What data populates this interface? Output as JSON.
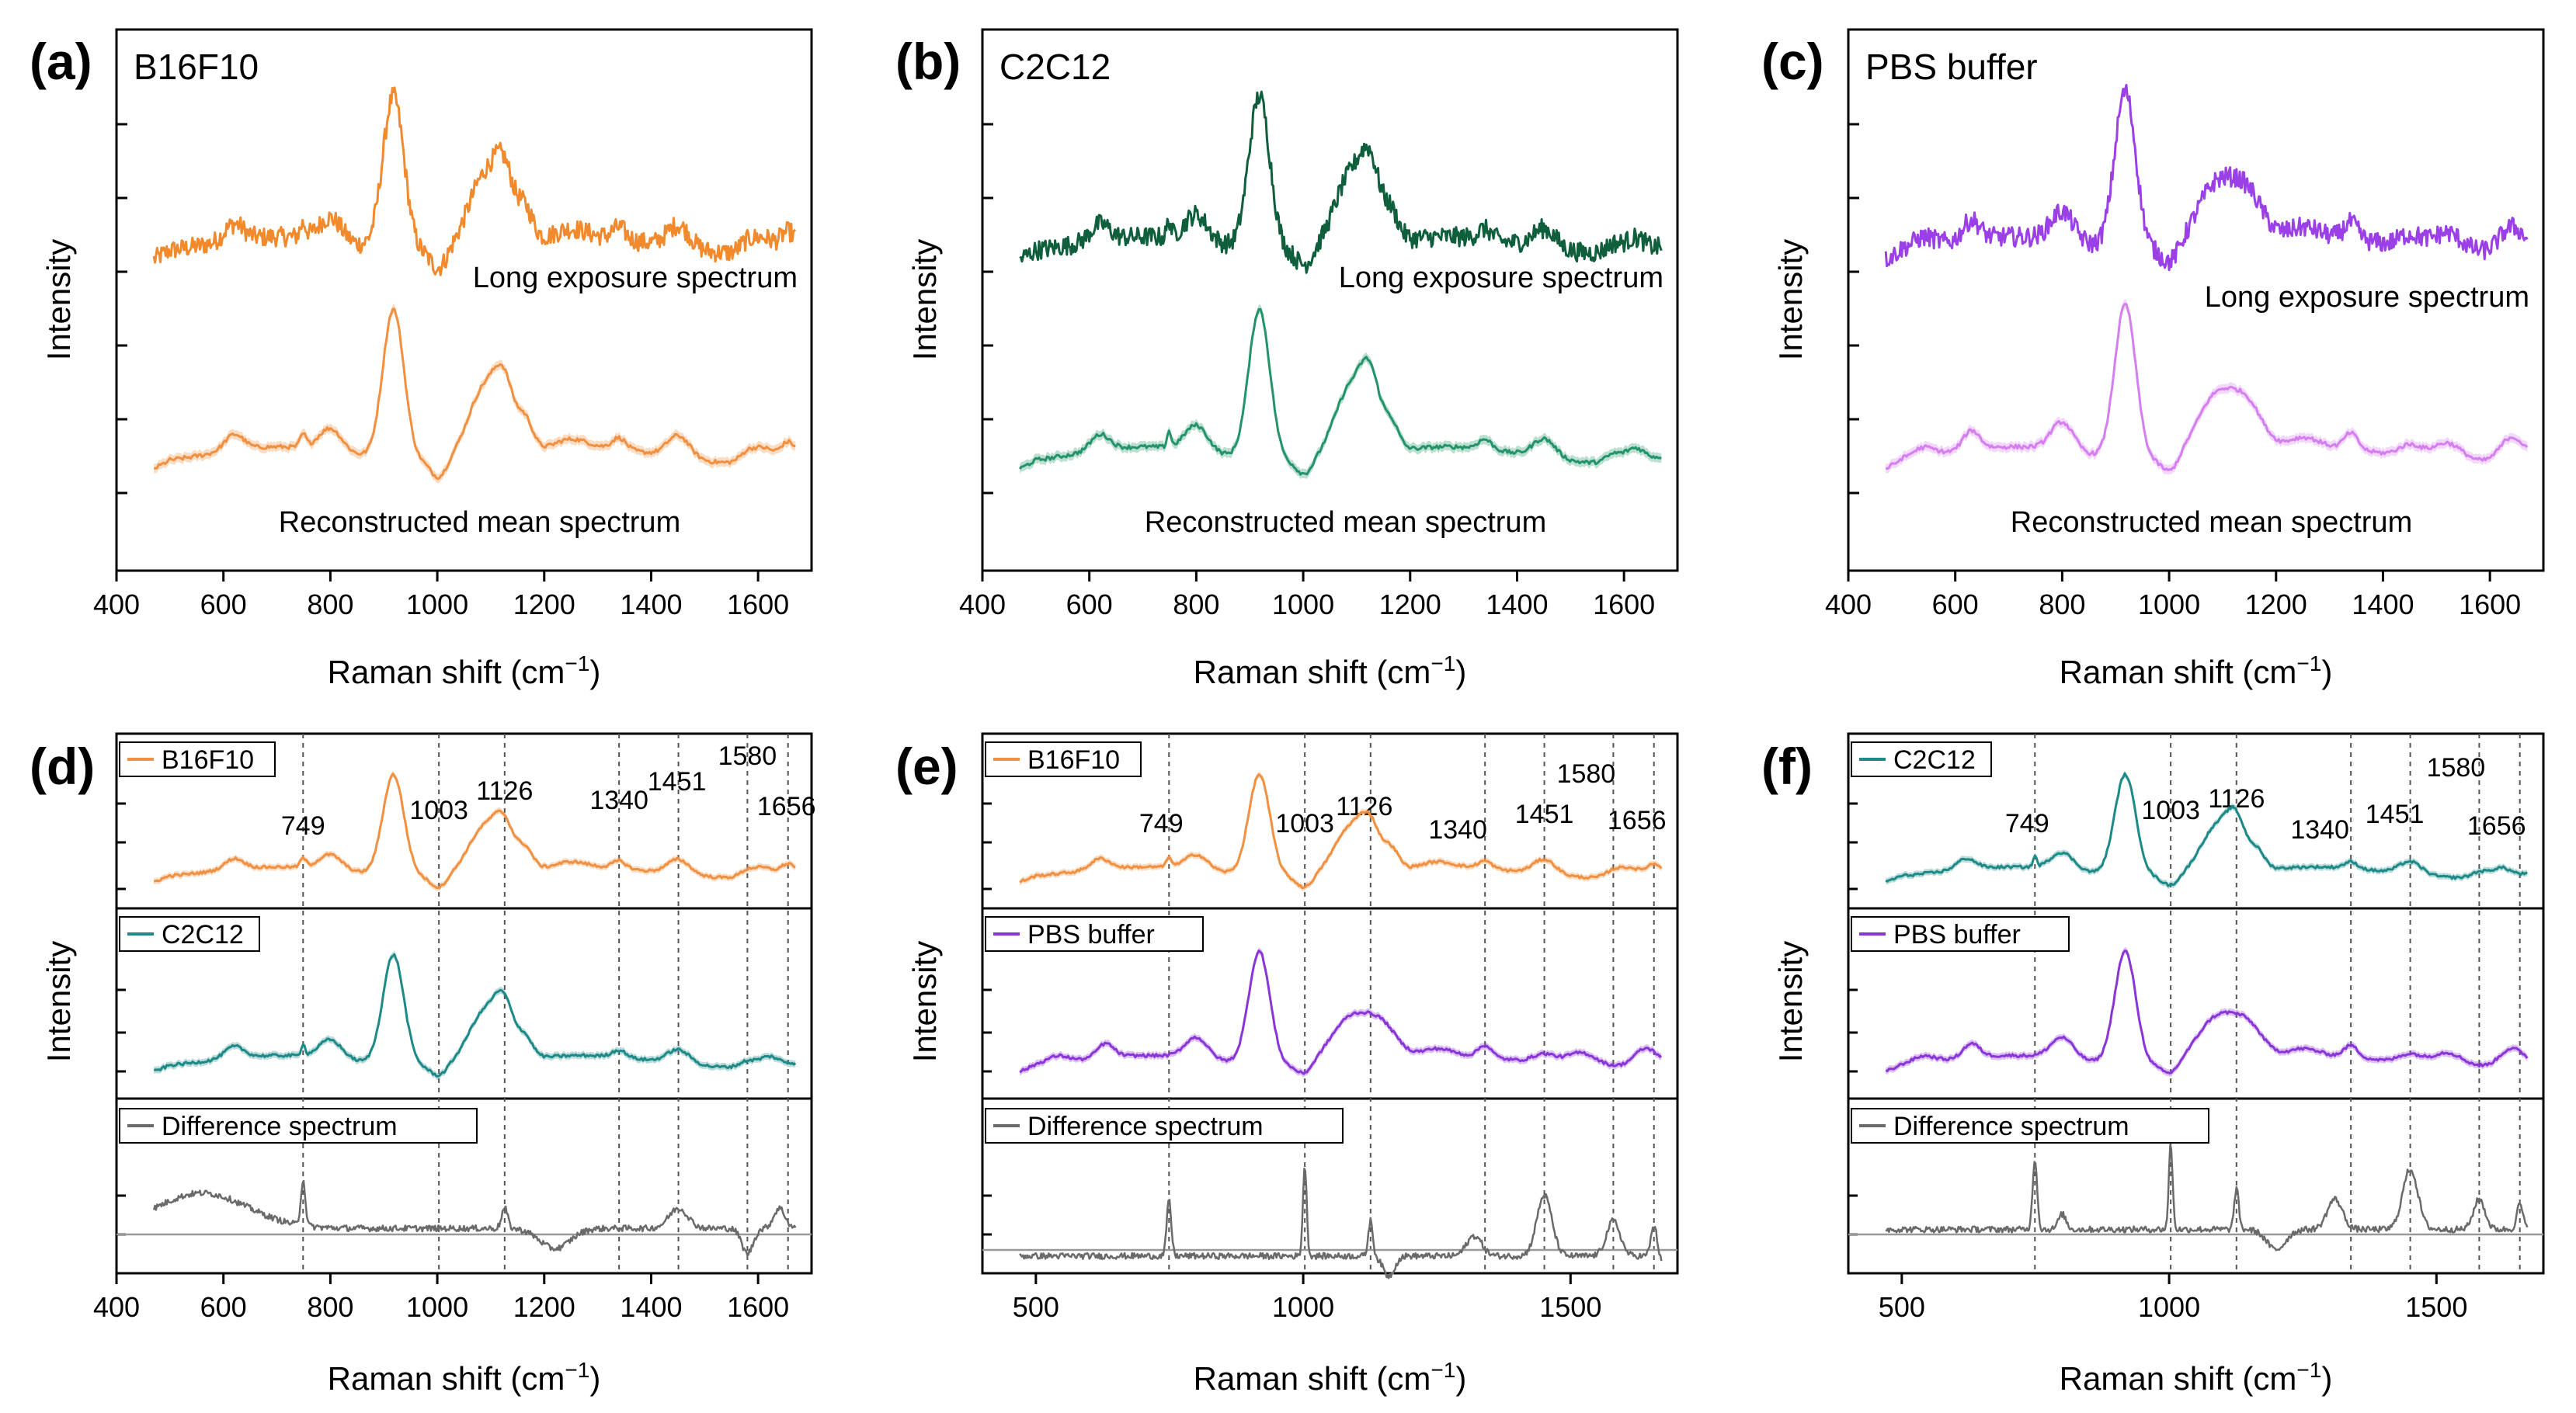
{
  "figure": {
    "xlabel_main": "Raman shift (cm",
    "xlabel_unit_sup": "−1",
    "xlabel_close": ")",
    "ylabel": "Intensity",
    "long_exposure_label": "Long exposure spectrum",
    "reconstructed_label": "Reconstructed mean spectrum",
    "difference_label": "Difference spectrum"
  },
  "colors": {
    "b16_long": "#f08a2c",
    "b16_recon": "#f09040",
    "c2c12_long": "#0f5e3c",
    "c2c12_recon": "#23946a",
    "pbs_long": "#9b3fe6",
    "pbs_recon": "#d47ef0",
    "c2c12_diff_panel": "#1e8a88",
    "pbs_diff_panel": "#8a35d8",
    "difference": "#6a6a6a"
  },
  "chart_data": [
    {
      "type": "line",
      "panel": "(a)",
      "title": "B16F10",
      "xlabel": "Raman shift (cm−1)",
      "ylabel": "Intensity",
      "xlim": [
        400,
        1700
      ],
      "xticks": [
        400,
        600,
        800,
        1000,
        1200,
        1400,
        1600
      ],
      "series": [
        {
          "name": "Long exposure spectrum",
          "peaks": [
            [
              749,
              0.35
            ],
            [
              918,
              1.0
            ],
            [
              1003,
              -0.2
            ],
            [
              1090,
              0.6
            ],
            [
              1126,
              0.5
            ],
            [
              1451,
              0.45
            ],
            [
              1656,
              0.3
            ]
          ]
        },
        {
          "name": "Reconstructed mean spectrum",
          "peaks": [
            [
              620,
              0.15
            ],
            [
              749,
              0.2
            ],
            [
              918,
              1.0
            ],
            [
              1003,
              -0.1
            ],
            [
              1090,
              0.5
            ],
            [
              1126,
              0.4
            ],
            [
              1340,
              0.1
            ],
            [
              1451,
              0.2
            ],
            [
              1580,
              0.1
            ],
            [
              1656,
              0.12
            ]
          ]
        }
      ]
    },
    {
      "type": "line",
      "panel": "(b)",
      "title": "C2C12",
      "xlabel": "Raman shift (cm−1)",
      "ylabel": "Intensity",
      "xlim": [
        400,
        1700
      ],
      "xticks": [
        400,
        600,
        800,
        1000,
        1200,
        1400,
        1600
      ],
      "series": [
        {
          "name": "Long exposure spectrum",
          "peaks": [
            [
              749,
              0.55
            ],
            [
              918,
              1.0
            ],
            [
              1003,
              -0.3
            ],
            [
              1090,
              0.55
            ],
            [
              1126,
              0.4
            ],
            [
              1451,
              0.35
            ]
          ]
        },
        {
          "name": "Reconstructed mean spectrum",
          "peaks": [
            [
              620,
              0.15
            ],
            [
              749,
              0.3
            ],
            [
              918,
              1.0
            ],
            [
              1003,
              -0.1
            ],
            [
              1090,
              0.55
            ],
            [
              1126,
              0.45
            ],
            [
              1451,
              0.2
            ],
            [
              1656,
              0.15
            ]
          ]
        }
      ]
    },
    {
      "type": "line",
      "panel": "(c)",
      "title": "PBS buffer",
      "xlabel": "Raman shift (cm−1)",
      "ylabel": "Intensity",
      "xlim": [
        400,
        1700
      ],
      "xticks": [
        400,
        600,
        800,
        1000,
        1200,
        1400,
        1600
      ],
      "series": [
        {
          "name": "Long exposure spectrum",
          "peaks": [
            [
              620,
              0.15
            ],
            [
              800,
              0.2
            ],
            [
              918,
              1.0
            ],
            [
              1003,
              -0.1
            ],
            [
              1090,
              0.5
            ],
            [
              1340,
              0.15
            ],
            [
              1451,
              0.15
            ],
            [
              1520,
              0.2
            ]
          ]
        },
        {
          "name": "Reconstructed mean spectrum",
          "peaks": [
            [
              620,
              0.2
            ],
            [
              800,
              0.25
            ],
            [
              918,
              1.0
            ],
            [
              1003,
              -0.1
            ],
            [
              1090,
              0.5
            ],
            [
              1340,
              0.15
            ],
            [
              1451,
              0.15
            ],
            [
              1656,
              0.2
            ]
          ]
        }
      ]
    },
    {
      "type": "line",
      "panel": "(d)",
      "xlabel": "Raman shift (cm−1)",
      "ylabel": "Intensity",
      "xlim": [
        400,
        1700
      ],
      "xticks": [
        400,
        600,
        800,
        1000,
        1200,
        1400,
        1600
      ],
      "peak_labels": [
        749,
        1003,
        1126,
        1340,
        1451,
        1580,
        1656
      ],
      "series": [
        {
          "name": "B16F10",
          "color": "#f09040"
        },
        {
          "name": "C2C12",
          "color": "#1e8a88"
        },
        {
          "name": "Difference spectrum",
          "color": "#6a6a6a"
        }
      ]
    },
    {
      "type": "line",
      "panel": "(e)",
      "xlabel": "Raman shift (cm−1)",
      "ylabel": "Intensity",
      "xlim": [
        400,
        1700
      ],
      "xticks": [
        500,
        1000,
        1500
      ],
      "peak_labels": [
        749,
        1003,
        1126,
        1340,
        1451,
        1580,
        1656
      ],
      "series": [
        {
          "name": "B16F10",
          "color": "#f09040"
        },
        {
          "name": "PBS buffer",
          "color": "#8a35d8"
        },
        {
          "name": "Difference spectrum",
          "color": "#6a6a6a"
        }
      ]
    },
    {
      "type": "line",
      "panel": "(f)",
      "xlabel": "Raman shift (cm−1)",
      "ylabel": "Intensity",
      "xlim": [
        400,
        1700
      ],
      "xticks": [
        500,
        1000,
        1500
      ],
      "peak_labels": [
        749,
        1003,
        1126,
        1340,
        1451,
        1580,
        1656
      ],
      "series": [
        {
          "name": "C2C12",
          "color": "#1e8a88"
        },
        {
          "name": "PBS buffer",
          "color": "#8a35d8"
        },
        {
          "name": "Difference spectrum",
          "color": "#6a6a6a"
        }
      ]
    }
  ]
}
